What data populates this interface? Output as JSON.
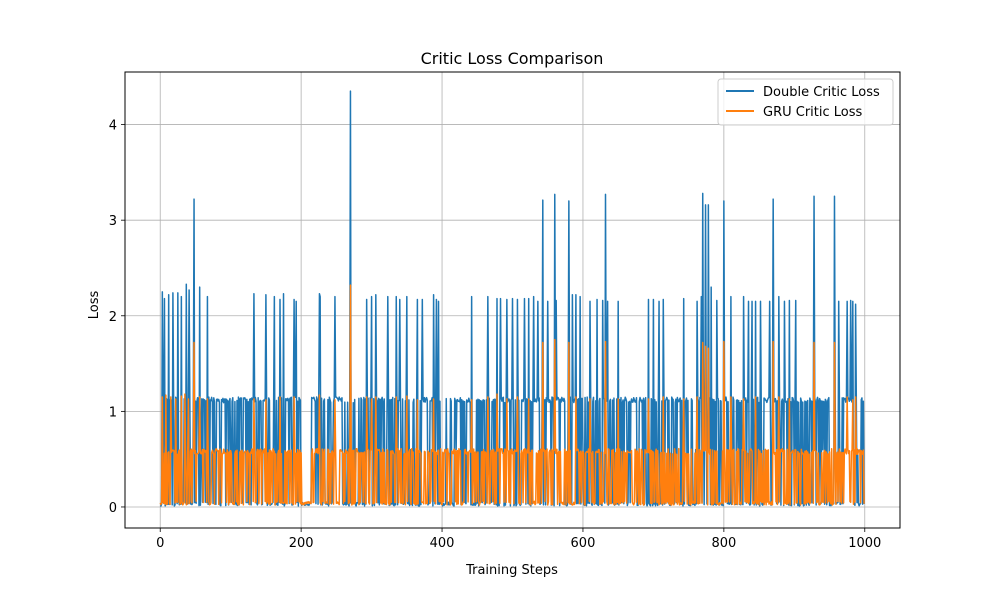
{
  "chart_data": {
    "type": "line",
    "title": "Critic Loss Comparison",
    "xlabel": "Training Steps",
    "ylabel": "Loss",
    "xlim": [
      -50,
      1050
    ],
    "ylim": [
      -0.22,
      4.55
    ],
    "xticks": [
      0,
      200,
      400,
      600,
      800,
      1000
    ],
    "yticks": [
      0,
      1,
      2,
      3,
      4
    ],
    "grid": true,
    "legend_position": "top-right",
    "n_points": 1000,
    "series": [
      {
        "name": "Double Critic Loss",
        "color": "#1f77b4",
        "baseline": 0.01,
        "band_level": 1.12,
        "band_segments": [
          [
            5,
            200
          ],
          [
            215,
            1000
          ]
        ],
        "mid_dips": [
          [
            26,
            0.6
          ],
          [
            38,
            0.6
          ],
          [
            58,
            0.6
          ],
          [
            100,
            0.6
          ],
          [
            150,
            0.6
          ],
          [
            245,
            0.6
          ],
          [
            305,
            0.6
          ],
          [
            355,
            0.6
          ],
          [
            420,
            0.6
          ],
          [
            480,
            0.6
          ],
          [
            530,
            0.6
          ],
          [
            600,
            0.6
          ],
          [
            650,
            0.6
          ],
          [
            700,
            0.6
          ],
          [
            760,
            0.6
          ],
          [
            820,
            0.6
          ],
          [
            880,
            0.6
          ],
          [
            940,
            0.6
          ],
          [
            990,
            0.6
          ]
        ],
        "spikes": [
          [
            3,
            2.25
          ],
          [
            6,
            2.18
          ],
          [
            12,
            2.22
          ],
          [
            18,
            2.24
          ],
          [
            25,
            2.24
          ],
          [
            30,
            2.2
          ],
          [
            37,
            2.33
          ],
          [
            41,
            2.27
          ],
          [
            48,
            3.22
          ],
          [
            56,
            2.3
          ],
          [
            67,
            2.2
          ],
          [
            133,
            2.23
          ],
          [
            150,
            2.22
          ],
          [
            162,
            2.2
          ],
          [
            170,
            2.17
          ],
          [
            175,
            2.23
          ],
          [
            190,
            2.17
          ],
          [
            193,
            2.15
          ],
          [
            226,
            2.23
          ],
          [
            227,
            2.2
          ],
          [
            248,
            2.2
          ],
          [
            270,
            4.35
          ],
          [
            293,
            2.17
          ],
          [
            300,
            2.2
          ],
          [
            306,
            2.22
          ],
          [
            323,
            2.2
          ],
          [
            335,
            2.2
          ],
          [
            340,
            2.17
          ],
          [
            350,
            2.2
          ],
          [
            365,
            2.17
          ],
          [
            372,
            2.17
          ],
          [
            388,
            2.22
          ],
          [
            392,
            2.17
          ],
          [
            395,
            2.15
          ],
          [
            442,
            2.2
          ],
          [
            465,
            2.2
          ],
          [
            478,
            2.18
          ],
          [
            483,
            2.18
          ],
          [
            492,
            2.17
          ],
          [
            500,
            2.18
          ],
          [
            507,
            2.17
          ],
          [
            517,
            2.18
          ],
          [
            523,
            2.18
          ],
          [
            530,
            2.2
          ],
          [
            536,
            2.15
          ],
          [
            543,
            3.21
          ],
          [
            550,
            2.15
          ],
          [
            560,
            3.27
          ],
          [
            562,
            2.16
          ],
          [
            580,
            3.2
          ],
          [
            585,
            2.22
          ],
          [
            590,
            2.22
          ],
          [
            596,
            2.2
          ],
          [
            610,
            2.15
          ],
          [
            620,
            2.17
          ],
          [
            628,
            2.16
          ],
          [
            632,
            3.27
          ],
          [
            635,
            2.15
          ],
          [
            650,
            2.15
          ],
          [
            693,
            2.17
          ],
          [
            700,
            2.17
          ],
          [
            708,
            2.15
          ],
          [
            714,
            2.17
          ],
          [
            743,
            2.18
          ],
          [
            762,
            2.15
          ],
          [
            768,
            2.2
          ],
          [
            770,
            3.28
          ],
          [
            774,
            3.16
          ],
          [
            778,
            3.16
          ],
          [
            782,
            2.3
          ],
          [
            790,
            2.16
          ],
          [
            800,
            3.2
          ],
          [
            810,
            2.2
          ],
          [
            828,
            2.2
          ],
          [
            835,
            2.15
          ],
          [
            840,
            2.15
          ],
          [
            845,
            2.15
          ],
          [
            852,
            2.15
          ],
          [
            865,
            2.15
          ],
          [
            870,
            3.22
          ],
          [
            878,
            2.2
          ],
          [
            886,
            2.15
          ],
          [
            893,
            2.16
          ],
          [
            902,
            2.16
          ],
          [
            928,
            3.25
          ],
          [
            957,
            3.25
          ],
          [
            963,
            2.15
          ],
          [
            975,
            2.15
          ],
          [
            980,
            2.16
          ],
          [
            983,
            2.15
          ],
          [
            987,
            2.12
          ]
        ]
      },
      {
        "name": "GRU Critic Loss",
        "color": "#ff7f0e",
        "baseline": 0.02,
        "band_level": 0.58,
        "band_segments": [
          [
            5,
            200
          ],
          [
            215,
            1000
          ]
        ],
        "spikes": [
          [
            3,
            1.15
          ],
          [
            8,
            1.17
          ],
          [
            15,
            1.15
          ],
          [
            22,
            1.13
          ],
          [
            30,
            1.16
          ],
          [
            35,
            1.18
          ],
          [
            40,
            1.13
          ],
          [
            48,
            1.72
          ],
          [
            56,
            1.15
          ],
          [
            67,
            1.13
          ],
          [
            133,
            1.13
          ],
          [
            150,
            1.12
          ],
          [
            170,
            1.15
          ],
          [
            190,
            1.15
          ],
          [
            226,
            1.17
          ],
          [
            248,
            1.12
          ],
          [
            270,
            2.32
          ],
          [
            293,
            1.15
          ],
          [
            300,
            1.13
          ],
          [
            306,
            1.15
          ],
          [
            335,
            1.15
          ],
          [
            350,
            1.16
          ],
          [
            365,
            1.12
          ],
          [
            388,
            1.13
          ],
          [
            442,
            1.12
          ],
          [
            465,
            1.15
          ],
          [
            478,
            1.18
          ],
          [
            492,
            1.13
          ],
          [
            507,
            1.15
          ],
          [
            523,
            1.13
          ],
          [
            543,
            1.72
          ],
          [
            560,
            1.75
          ],
          [
            580,
            1.72
          ],
          [
            590,
            1.15
          ],
          [
            610,
            1.13
          ],
          [
            632,
            1.73
          ],
          [
            650,
            1.13
          ],
          [
            693,
            1.13
          ],
          [
            714,
            1.15
          ],
          [
            743,
            1.13
          ],
          [
            762,
            1.15
          ],
          [
            770,
            1.72
          ],
          [
            774,
            1.68
          ],
          [
            778,
            1.66
          ],
          [
            800,
            1.73
          ],
          [
            810,
            1.15
          ],
          [
            828,
            1.13
          ],
          [
            845,
            1.15
          ],
          [
            870,
            1.73
          ],
          [
            878,
            1.15
          ],
          [
            893,
            1.13
          ],
          [
            928,
            1.72
          ],
          [
            957,
            1.72
          ],
          [
            975,
            1.15
          ],
          [
            983,
            1.12
          ],
          [
            987,
            1.15
          ]
        ]
      }
    ]
  }
}
